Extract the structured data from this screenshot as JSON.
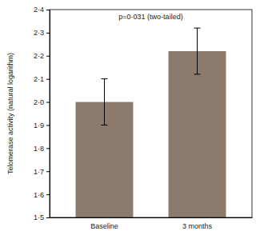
{
  "chart_data": {
    "type": "bar",
    "title": "p=0·031 (two-tailed)",
    "y_label": "Telomerase activity (natural logarithm)",
    "categories": [
      "Baseline",
      "3 months"
    ],
    "values": [
      2.0,
      2.22
    ],
    "errors": [
      0.1,
      0.1
    ],
    "color": "#8c7b6c",
    "ylim": [
      1.5,
      2.4
    ],
    "yticks": [
      {
        "value": 1.5,
        "label": "1·5"
      },
      {
        "value": 1.6,
        "label": "1·6"
      },
      {
        "value": 1.7,
        "label": "1·7"
      },
      {
        "value": 1.8,
        "label": "1·8"
      },
      {
        "value": 1.9,
        "label": "1·9"
      },
      {
        "value": 2.0,
        "label": "2·0"
      },
      {
        "value": 2.1,
        "label": "2·1"
      },
      {
        "value": 2.2,
        "label": "2·2"
      },
      {
        "value": 2.3,
        "label": "2·3"
      },
      {
        "value": 2.4,
        "label": "2·4"
      }
    ],
    "grid": false
  }
}
